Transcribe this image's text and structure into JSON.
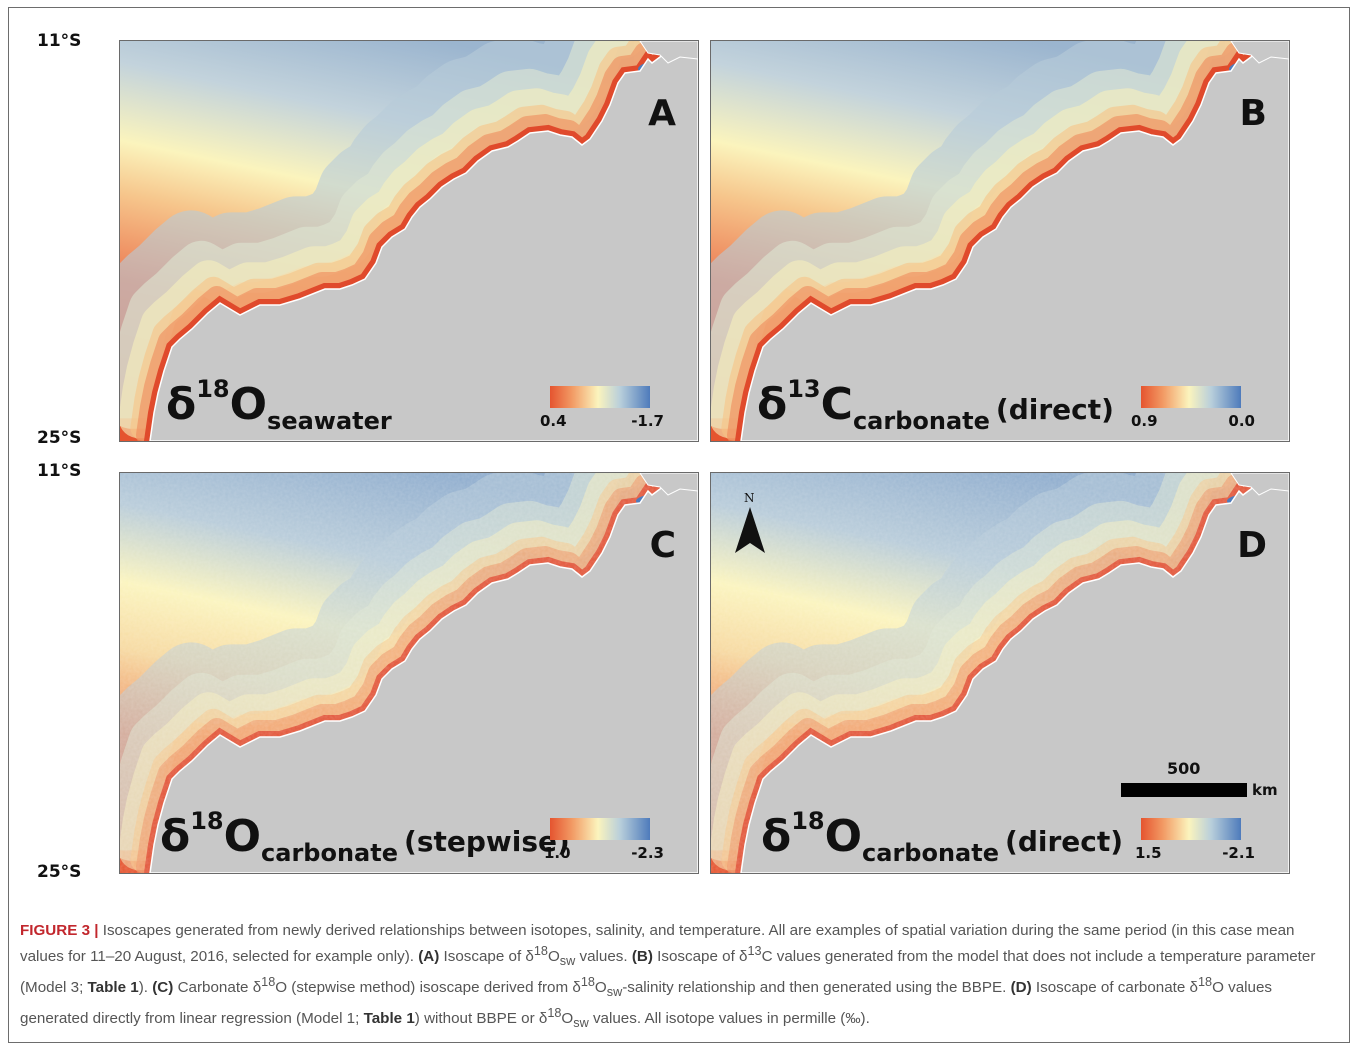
{
  "latitudes": {
    "top": "11°S",
    "bottom": "25°S"
  },
  "panels": [
    {
      "id": "A",
      "label": "A",
      "sym": "δ",
      "iso": "18",
      "elem": "O",
      "sub": "seawater",
      "method": "",
      "legend_min": "0.4",
      "legend_max": "-1.7",
      "style": "smooth"
    },
    {
      "id": "B",
      "label": "B",
      "sym": "δ",
      "iso": "13",
      "elem": "C",
      "sub": "carbonate",
      "method": "(direct)",
      "legend_min": "0.9",
      "legend_max": "0.0",
      "style": "smooth"
    },
    {
      "id": "C",
      "label": "C",
      "sym": "δ",
      "iso": "18",
      "elem": "O",
      "sub": "carbonate",
      "method": "(stepwise)",
      "legend_min": "1.0",
      "legend_max": "-2.3",
      "style": "noisy"
    },
    {
      "id": "D",
      "label": "D",
      "sym": "δ",
      "iso": "18",
      "elem": "O",
      "sub": "carbonate",
      "method": "(direct)",
      "legend_min": "1.5",
      "legend_max": "-2.1",
      "style": "noisy"
    }
  ],
  "north_arrow": {
    "label": "N"
  },
  "scale_bar": {
    "value": "500",
    "unit": "km"
  },
  "colors": {
    "warm": "#e5542f",
    "mid": "#fbf4bd",
    "cool": "#4e7bbb",
    "land": "#c8c8c8"
  },
  "caption": {
    "figure_label": "FIGURE 3 |",
    "p1": " Isoscapes generated from newly derived relationships between isotopes, salinity, and temperature. All are examples of spatial variation during the same period (in this case mean values for 11–20 August, 2016, selected for example only). ",
    "a_label": "(A)",
    "p2": " Isoscape of δ",
    "p2_sup": "18",
    "p2_o": "O",
    "p2_sub": "sw",
    "p3": " values. ",
    "b_label": "(B)",
    "p4": " Isoscape of δ",
    "p4_sup": "13",
    "p5": "C values generated from the model that does not include a temperature parameter (Model 3; ",
    "table_ref": "Table 1",
    "p6": "). ",
    "c_label": "(C)",
    "p7": " Carbonate δ",
    "p7_sup": "18",
    "p8": "O (stepwise method) isoscape derived from δ",
    "p8_sup": "18",
    "p8_o": "O",
    "p8_sub": "sw",
    "p9": "-salinity relationship and then generated using the BBPE. ",
    "d_label": "(D)",
    "p10": " Isoscape of carbonate δ",
    "p10_sup": "18",
    "p11": "O values generated directly from linear regression (Model 1; ",
    "table_ref2": "Table 1",
    "p12": ") without BBPE or δ",
    "p12_sup": "18",
    "p12_o": "O",
    "p12_sub": "sw",
    "p13": " values. All isotope values in permille (‰)."
  }
}
